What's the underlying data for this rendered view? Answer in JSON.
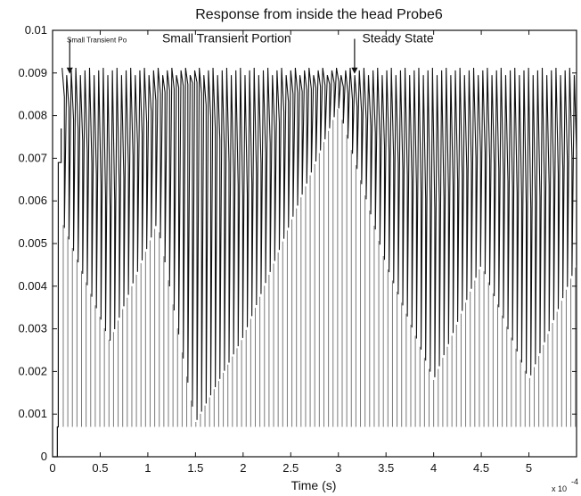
{
  "chart_data": {
    "type": "line",
    "title": "Response from inside the head Probe6",
    "xlabel": "Time (s)",
    "ylabel": "",
    "x_multiplier": {
      "base": "x 10",
      "exponent": "-4"
    },
    "xlim": [
      0,
      5.5
    ],
    "ylim": [
      0,
      0.01
    ],
    "x_ticks": [
      "0",
      "0.5",
      "1",
      "1.5",
      "2",
      "2.5",
      "3",
      "3.5",
      "4",
      "4.5",
      "5"
    ],
    "x_tick_values": [
      0,
      0.5,
      1,
      1.5,
      2,
      2.5,
      3,
      3.5,
      4,
      4.5,
      5
    ],
    "y_ticks": [
      "0",
      "0.001",
      "0.002",
      "0.003",
      "0.004",
      "0.005",
      "0.006",
      "0.007",
      "0.008",
      "0.009",
      "0.01"
    ],
    "y_tick_values": [
      0,
      0.001,
      0.002,
      0.003,
      0.004,
      0.005,
      0.006,
      0.007,
      0.008,
      0.009,
      0.01
    ],
    "series": [
      {
        "color": "#111111",
        "values": {
          "oscillation_start": 0.1,
          "oscillation_period": 0.048,
          "peak_level": 0.009,
          "trough_level": 0.0007,
          "lower_envelope": {
            "x": [
              0.1,
              0.6,
              1.1,
              1.5,
              2.0,
              2.5,
              3.0,
              3.5,
              4.0,
              4.5,
              5.0,
              5.5
            ],
            "y": [
              0.0055,
              0.0027,
              0.0055,
              0.0008,
              0.0028,
              0.0055,
              0.0082,
              0.0045,
              0.0018,
              0.0045,
              0.0018,
              0.0045
            ]
          },
          "upper_envelope": {
            "x": [
              0.1,
              0.6,
              1.1,
              1.5,
              2.0,
              2.5,
              3.0,
              3.5,
              4.0,
              4.5,
              5.0,
              5.5
            ],
            "y": [
              0.0085,
              0.0058,
              0.0085,
              0.0088,
              0.006,
              0.0085,
              0.0088,
              0.0072,
              0.0058,
              0.0072,
              0.0058,
              0.0072
            ]
          }
        },
        "transient": {
          "x": [
            0,
            0.05,
            0.05,
            0.06,
            0.06,
            0.09,
            0.09
          ],
          "y": [
            0,
            0,
            0.0007,
            0.0007,
            0.0069,
            0.0069,
            0.0077
          ]
        }
      }
    ],
    "annotations": [
      {
        "text": "Small Transient Po",
        "x": 0.15,
        "y": 0.0098,
        "size": "small"
      },
      {
        "text": "Small Transient Portion",
        "x": 1.15,
        "y": 0.0098,
        "size": "normal"
      },
      {
        "text": "Steady State",
        "x": 3.25,
        "y": 0.0098,
        "size": "normal"
      }
    ],
    "arrows": [
      {
        "x": 0.18,
        "y_from": 0.0098,
        "y_to": 0.009
      },
      {
        "x": 3.17,
        "y_from": 0.0098,
        "y_to": 0.009
      }
    ],
    "grid": false
  }
}
